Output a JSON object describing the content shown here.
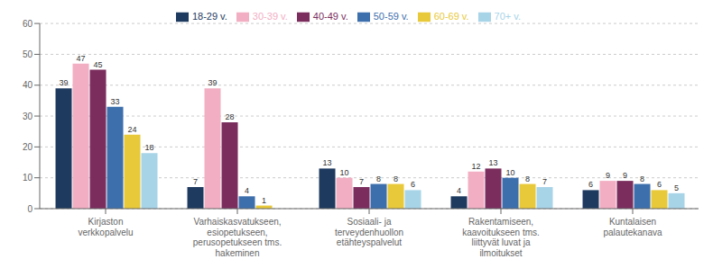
{
  "chart_data": {
    "type": "bar",
    "categories": [
      "Kirjaston\nverkkopalvelu",
      "Varhaiskasvatukseen,\nesiopetukseen,\nperusopetukseen tms.\nhakeminen",
      "Sosiaali- ja\nterveydenhuollon\netähteyspalvelut",
      "Rakentamiseen,\nkaavoitukseen tms.\nliittyvät luvat ja\nilmoitukset",
      "Kuntalaisen\npalautekanava"
    ],
    "series": [
      {
        "name": "18-29 v.",
        "color": "#1e3a5f",
        "values": [
          39,
          7,
          13,
          4,
          6
        ]
      },
      {
        "name": "30-39 v.",
        "color": "#f2aec3",
        "values": [
          47,
          39,
          10,
          12,
          9
        ]
      },
      {
        "name": "40-49 v.",
        "color": "#7b2d5e",
        "values": [
          45,
          28,
          7,
          13,
          9
        ]
      },
      {
        "name": "50-59 v.",
        "color": "#3d6fad",
        "values": [
          33,
          4,
          8,
          10,
          8
        ]
      },
      {
        "name": "60-69 v.",
        "color": "#e8c93a",
        "values": [
          24,
          1,
          8,
          8,
          6
        ]
      },
      {
        "name": "70+ v.",
        "color": "#a8d4e8",
        "values": [
          18,
          0,
          6,
          7,
          5
        ],
        "value_labels": [
          "18",
          null,
          "6",
          "7",
          "5"
        ]
      }
    ],
    "ylim": [
      0,
      60
    ],
    "yticks": [
      0,
      10,
      20,
      30,
      40,
      50,
      60
    ],
    "grid": true,
    "legend": "top",
    "data_labels": true
  }
}
